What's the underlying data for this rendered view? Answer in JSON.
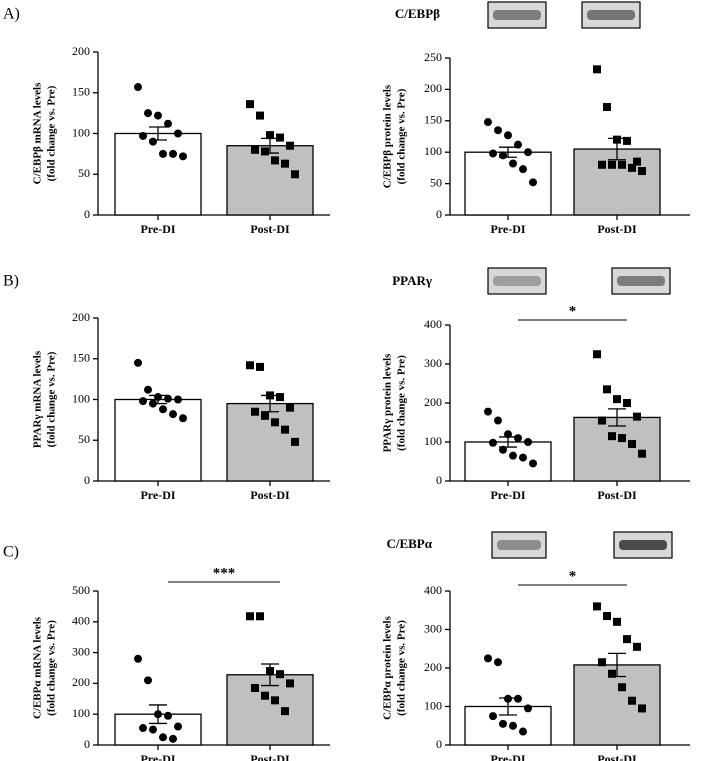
{
  "chart_data": [
    {
      "type": "bar",
      "panel_label": "A)",
      "ylabel": [
        "C/EBPβ mRNA levels",
        "(fold change vs. Pre)"
      ],
      "categories": [
        "Pre-DI",
        "Post-DI"
      ],
      "values": [
        100,
        85
      ],
      "errors": [
        8,
        9
      ],
      "colors": [
        "#ffffff",
        "#c0c0c0"
      ],
      "markers": [
        "circle",
        "square"
      ],
      "points": [
        [
          157,
          125,
          122,
          112,
          100,
          97,
          90,
          75,
          75,
          72
        ],
        [
          136,
          122,
          98,
          95,
          85,
          80,
          78,
          67,
          63,
          50
        ]
      ],
      "ylim": [
        0,
        200
      ],
      "yticks": [
        0,
        50,
        100,
        150,
        200
      ]
    },
    {
      "type": "bar",
      "protein_label": "C/EBPβ",
      "ylabel": [
        "C/EBPβ protein levels",
        "(fold change vs. Pre)"
      ],
      "categories": [
        "Pre-DI",
        "Post-DI"
      ],
      "values": [
        100,
        105
      ],
      "errors": [
        8,
        17
      ],
      "colors": [
        "#ffffff",
        "#c0c0c0"
      ],
      "markers": [
        "circle",
        "square"
      ],
      "points": [
        [
          148,
          135,
          127,
          112,
          100,
          98,
          95,
          82,
          73,
          52
        ],
        [
          232,
          172,
          120,
          118,
          85,
          80,
          80,
          80,
          75,
          70
        ]
      ],
      "ylim": [
        0,
        250
      ],
      "yticks": [
        0,
        50,
        100,
        150,
        200,
        250
      ]
    },
    {
      "type": "bar",
      "panel_label": "B)",
      "ylabel": [
        "PPARγ mRNA levels",
        "(fold change vs. Pre)"
      ],
      "categories": [
        "Pre-DI",
        "Post-DI"
      ],
      "values": [
        100,
        95
      ],
      "errors": [
        5,
        10
      ],
      "colors": [
        "#ffffff",
        "#c0c0c0"
      ],
      "markers": [
        "circle",
        "square"
      ],
      "points": [
        [
          145,
          112,
          103,
          101,
          100,
          98,
          95,
          88,
          82,
          77
        ],
        [
          142,
          140,
          105,
          103,
          90,
          85,
          80,
          72,
          63,
          48
        ]
      ],
      "ylim": [
        0,
        200
      ],
      "yticks": [
        0,
        50,
        100,
        150,
        200
      ]
    },
    {
      "type": "bar",
      "protein_label": "PPARγ",
      "significance": "*",
      "ylabel": [
        "PPARγ protein levels",
        "(fold change vs. Pre)"
      ],
      "categories": [
        "Pre-DI",
        "Post-DI"
      ],
      "values": [
        100,
        163
      ],
      "errors": [
        13,
        22
      ],
      "colors": [
        "#ffffff",
        "#c0c0c0"
      ],
      "markers": [
        "circle",
        "square"
      ],
      "points": [
        [
          178,
          155,
          120,
          110,
          100,
          98,
          80,
          65,
          60,
          45
        ],
        [
          325,
          235,
          210,
          200,
          165,
          155,
          115,
          110,
          95,
          70
        ]
      ],
      "ylim": [
        0,
        400
      ],
      "yticks": [
        0,
        100,
        200,
        300,
        400
      ]
    },
    {
      "type": "bar",
      "panel_label": "C)",
      "significance": "***",
      "ylabel": [
        "C/EBPα mRNA levels",
        "(fold change vs. Pre)"
      ],
      "categories": [
        "Pre-DI",
        "Post-DI"
      ],
      "values": [
        100,
        228
      ],
      "errors": [
        30,
        35
      ],
      "colors": [
        "#ffffff",
        "#c0c0c0"
      ],
      "markers": [
        "circle",
        "square"
      ],
      "points": [
        [
          280,
          210,
          100,
          95,
          60,
          55,
          50,
          25,
          20
        ],
        [
          418,
          418,
          240,
          230,
          200,
          185,
          160,
          145,
          110
        ]
      ],
      "ylim": [
        0,
        500
      ],
      "yticks": [
        0,
        100,
        200,
        300,
        400,
        500
      ]
    },
    {
      "type": "bar",
      "protein_label": "C/EBPα",
      "significance": "*",
      "ylabel": [
        "C/EBPα protein levels",
        "(fold change vs. Pre)"
      ],
      "categories": [
        "Pre-DI",
        "Post-DI"
      ],
      "values": [
        100,
        208
      ],
      "errors": [
        22,
        30
      ],
      "colors": [
        "#ffffff",
        "#c0c0c0"
      ],
      "markers": [
        "circle",
        "square"
      ],
      "points": [
        [
          225,
          215,
          120,
          120,
          95,
          75,
          55,
          50,
          35
        ],
        [
          360,
          335,
          320,
          275,
          255,
          215,
          185,
          150,
          115,
          95
        ]
      ],
      "ylim": [
        0,
        400
      ],
      "yticks": [
        0,
        100,
        200,
        300,
        400
      ]
    }
  ]
}
